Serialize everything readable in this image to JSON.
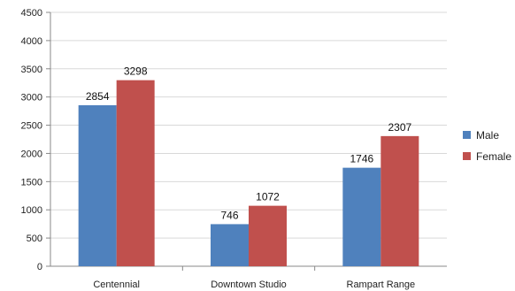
{
  "chart_data": {
    "type": "bar",
    "categories": [
      "Centennial",
      "Downtown Studio",
      "Rampart Range"
    ],
    "series": [
      {
        "name": "Male",
        "values": [
          2854,
          746,
          1746
        ],
        "color": "#4F81BD"
      },
      {
        "name": "Female",
        "values": [
          3298,
          1072,
          2307
        ],
        "color": "#C0504D"
      }
    ],
    "ylim": [
      0,
      4500
    ],
    "yticks": [
      0,
      500,
      1000,
      1500,
      2000,
      2500,
      3000,
      3500,
      4000,
      4500
    ],
    "grid": true,
    "legend_position": "right",
    "data_labels": true
  }
}
